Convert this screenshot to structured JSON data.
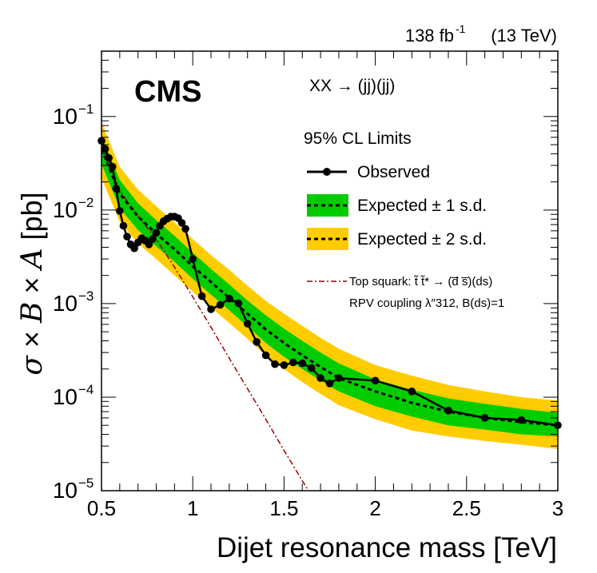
{
  "chart_data": {
    "type": "line",
    "lumi_label": "138 fb",
    "lumi_sup": "-1",
    "energy_label": "(13 TeV)",
    "experiment": "CMS",
    "process": "XX → (jj)(jj)",
    "ylabel_sigma": "σ",
    "ylabel_times1": "×",
    "ylabel_B": "B",
    "ylabel_times2": "×",
    "ylabel_A": "A",
    "ylabel_unit": "[pb]",
    "xlabel": "Dijet resonance mass [TeV]",
    "xlim": [
      0.5,
      3.0
    ],
    "ylim": [
      1e-05,
      0.5
    ],
    "x_ticks": [
      "0.5",
      "1",
      "1.5",
      "2",
      "2.5",
      "3"
    ],
    "x_tick_values": [
      0.5,
      1.0,
      1.5,
      2.0,
      2.5,
      3.0
    ],
    "y_ticks": [
      {
        "value": 1e-05,
        "base": "10",
        "exp": "−5"
      },
      {
        "value": 0.0001,
        "base": "10",
        "exp": "−4"
      },
      {
        "value": 0.001,
        "base": "10",
        "exp": "−3"
      },
      {
        "value": 0.01,
        "base": "10",
        "exp": "−2"
      },
      {
        "value": 0.1,
        "base": "10",
        "exp": "−1"
      }
    ],
    "legend": {
      "header": "95% CL Limits",
      "observed": "Observed",
      "expected1": "Expected ± 1 s.d.",
      "expected2": "Expected ± 2 s.d.",
      "theory_line1": "Top squark: t̃ t̃* → (d̅ s̅)(ds)",
      "theory_line2": "RPV coupling λ″312, B(ds)=1"
    },
    "colors": {
      "band1": "#00cc00",
      "band2": "#ffcc00",
      "observed": "#000000",
      "expected": "#000000",
      "theory": "#990000"
    },
    "series": [
      {
        "name": "Observed",
        "x": [
          0.5,
          0.52,
          0.54,
          0.56,
          0.58,
          0.6,
          0.62,
          0.64,
          0.66,
          0.68,
          0.7,
          0.72,
          0.74,
          0.76,
          0.78,
          0.8,
          0.82,
          0.84,
          0.86,
          0.88,
          0.9,
          0.92,
          0.94,
          0.96,
          1.0,
          1.05,
          1.1,
          1.15,
          1.2,
          1.25,
          1.3,
          1.35,
          1.4,
          1.45,
          1.5,
          1.55,
          1.6,
          1.65,
          1.7,
          1.75,
          1.8,
          2.0,
          2.2,
          2.4,
          2.6,
          2.8,
          3.0
        ],
        "y": [
          0.055,
          0.045,
          0.036,
          0.029,
          0.017,
          0.0098,
          0.0068,
          0.0052,
          0.0043,
          0.0039,
          0.0045,
          0.005,
          0.0047,
          0.0043,
          0.0049,
          0.0057,
          0.0068,
          0.0076,
          0.0081,
          0.0085,
          0.0085,
          0.0082,
          0.0073,
          0.0063,
          0.003,
          0.0012,
          0.00087,
          0.00097,
          0.00113,
          0.00101,
          0.00061,
          0.00039,
          0.00028,
          0.000225,
          0.00022,
          0.000235,
          0.00023,
          0.000205,
          0.00016,
          0.00014,
          0.00016,
          0.00015,
          0.000115,
          7.2e-05,
          6e-05,
          5.7e-05,
          5e-05
        ]
      },
      {
        "name": "Expected",
        "x": [
          0.5,
          0.6,
          0.7,
          0.8,
          0.9,
          1.0,
          1.1,
          1.2,
          1.3,
          1.4,
          1.5,
          1.6,
          1.7,
          1.8,
          2.0,
          2.2,
          2.4,
          2.6,
          2.8,
          3.0
        ],
        "y": [
          0.045,
          0.015,
          0.0085,
          0.0056,
          0.0038,
          0.0025,
          0.0017,
          0.00115,
          0.00078,
          0.00053,
          0.00038,
          0.00028,
          0.00021,
          0.00016,
          0.000115,
          8.7e-05,
          7e-05,
          6e-05,
          5.4e-05,
          5e-05
        ]
      },
      {
        "name": "Expected ± 1 s.d. band",
        "x": [
          0.5,
          0.6,
          0.7,
          0.8,
          0.9,
          1.0,
          1.1,
          1.2,
          1.3,
          1.4,
          1.5,
          1.6,
          1.7,
          1.8,
          2.0,
          2.2,
          2.4,
          2.6,
          2.8,
          3.0
        ],
        "y_low": [
          0.031,
          0.0105,
          0.0061,
          0.0041,
          0.0028,
          0.00184,
          0.00125,
          0.00085,
          0.00057,
          0.00038,
          0.00027,
          0.0002,
          0.00015,
          0.000115,
          8e-05,
          6.2e-05,
          5e-05,
          4.5e-05,
          4e-05,
          3.8e-05
        ],
        "y_high": [
          0.062,
          0.021,
          0.0118,
          0.0078,
          0.0053,
          0.0035,
          0.00235,
          0.0016,
          0.00108,
          0.00075,
          0.00054,
          0.0004,
          0.0003,
          0.00023,
          0.000155,
          0.00012,
          9.7e-05,
          8.5e-05,
          7.5e-05,
          6.8e-05
        ]
      },
      {
        "name": "Expected ± 2 s.d. band",
        "x": [
          0.5,
          0.6,
          0.7,
          0.8,
          0.9,
          1.0,
          1.1,
          1.2,
          1.3,
          1.4,
          1.5,
          1.6,
          1.7,
          1.8,
          2.0,
          2.2,
          2.4,
          2.6,
          2.8,
          3.0
        ],
        "y_low": [
          0.022,
          0.0075,
          0.0044,
          0.003,
          0.002,
          0.00134,
          0.00091,
          0.00062,
          0.00042,
          0.00028,
          0.0002,
          0.000145,
          0.000108,
          8.2e-05,
          5.8e-05,
          4.4e-05,
          3.8e-05,
          3.4e-05,
          3.1e-05,
          2.8e-05
        ],
        "y_high": [
          0.087,
          0.029,
          0.0165,
          0.011,
          0.0074,
          0.0049,
          0.0033,
          0.0023,
          0.00155,
          0.00107,
          0.00078,
          0.00058,
          0.00043,
          0.00033,
          0.00022,
          0.00017,
          0.000135,
          0.000115,
          0.0001,
          9.2e-05
        ]
      },
      {
        "name": "Top squark theory",
        "x": [
          0.5,
          0.6,
          0.7,
          0.8,
          0.9,
          1.0,
          1.1,
          1.2,
          1.3,
          1.4,
          1.5,
          1.6,
          1.66
        ],
        "y": [
          0.055,
          0.0162,
          0.0086,
          0.0049,
          0.00245,
          0.00118,
          0.00056,
          0.00026,
          0.000123,
          5.8e-05,
          2.7e-05,
          1.28e-05,
          8.3e-06
        ]
      }
    ]
  }
}
